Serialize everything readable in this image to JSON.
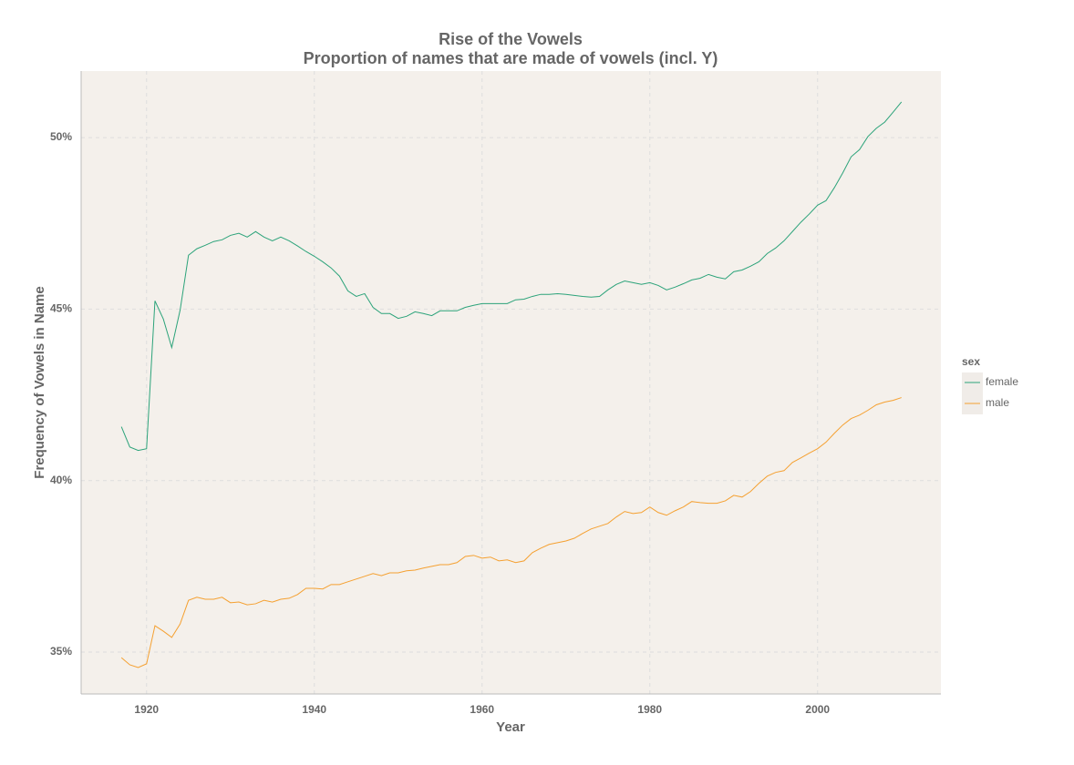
{
  "chart_data": {
    "type": "line",
    "title": "Rise of the Vowels",
    "subtitle": "Proportion of names that are made of vowels (incl. Y)",
    "x_label": "Year",
    "y_label": "Frequency of Vowels in Name",
    "legend_title": "sex",
    "legend_position": "right",
    "grid": true,
    "x": [
      1917,
      1918,
      1919,
      1920,
      1921,
      1922,
      1923,
      1924,
      1925,
      1926,
      1927,
      1928,
      1929,
      1930,
      1931,
      1932,
      1933,
      1934,
      1935,
      1936,
      1937,
      1938,
      1939,
      1940,
      1941,
      1942,
      1943,
      1944,
      1945,
      1946,
      1947,
      1948,
      1949,
      1950,
      1951,
      1952,
      1953,
      1954,
      1955,
      1956,
      1957,
      1958,
      1959,
      1960,
      1961,
      1962,
      1963,
      1964,
      1965,
      1966,
      1967,
      1968,
      1969,
      1970,
      1971,
      1972,
      1973,
      1974,
      1975,
      1976,
      1977,
      1978,
      1979,
      1980,
      1981,
      1982,
      1983,
      1984,
      1985,
      1986,
      1987,
      1988,
      1989,
      1990,
      1991,
      1992,
      1993,
      1994,
      1995,
      1996,
      1997,
      1998,
      1999,
      2000,
      2001,
      2002,
      2003,
      2004,
      2005,
      2006,
      2007,
      2008,
      2009,
      2010
    ],
    "series": [
      {
        "name": "female",
        "color": "#2ca37a",
        "values": [
          41.57,
          40.98,
          40.88,
          40.93,
          45.24,
          44.71,
          43.88,
          44.97,
          46.57,
          46.76,
          46.86,
          46.97,
          47.02,
          47.15,
          47.21,
          47.1,
          47.26,
          47.1,
          46.99,
          47.1,
          46.99,
          46.84,
          46.68,
          46.54,
          46.38,
          46.2,
          45.96,
          45.53,
          45.37,
          45.45,
          45.05,
          44.87,
          44.87,
          44.73,
          44.79,
          44.92,
          44.87,
          44.81,
          44.95,
          44.95,
          44.95,
          45.05,
          45.11,
          45.16,
          45.16,
          45.16,
          45.16,
          45.27,
          45.29,
          45.37,
          45.43,
          45.43,
          45.45,
          45.43,
          45.4,
          45.37,
          45.35,
          45.37,
          45.56,
          45.72,
          45.82,
          45.77,
          45.72,
          45.77,
          45.69,
          45.56,
          45.64,
          45.74,
          45.85,
          45.9,
          46.01,
          45.93,
          45.88,
          46.09,
          46.14,
          46.25,
          46.38,
          46.62,
          46.78,
          46.99,
          47.26,
          47.53,
          47.77,
          48.03,
          48.16,
          48.54,
          48.97,
          49.44,
          49.65,
          50.03,
          50.27,
          50.45,
          50.74,
          51.04
        ]
      },
      {
        "name": "male",
        "color": "#f5a030",
        "values": [
          34.84,
          34.63,
          34.55,
          34.66,
          35.77,
          35.61,
          35.43,
          35.82,
          36.51,
          36.6,
          36.54,
          36.54,
          36.6,
          36.44,
          36.46,
          36.38,
          36.41,
          36.51,
          36.46,
          36.54,
          36.57,
          36.68,
          36.86,
          36.86,
          36.84,
          36.97,
          36.97,
          37.05,
          37.13,
          37.21,
          37.29,
          37.23,
          37.31,
          37.31,
          37.37,
          37.39,
          37.45,
          37.5,
          37.55,
          37.55,
          37.61,
          37.79,
          37.82,
          37.74,
          37.77,
          37.66,
          37.69,
          37.61,
          37.66,
          37.9,
          38.03,
          38.14,
          38.19,
          38.24,
          38.32,
          38.46,
          38.59,
          38.67,
          38.75,
          38.94,
          39.1,
          39.04,
          39.07,
          39.23,
          39.07,
          38.99,
          39.12,
          39.23,
          39.39,
          39.36,
          39.34,
          39.34,
          39.41,
          39.57,
          39.52,
          39.68,
          39.92,
          40.13,
          40.24,
          40.29,
          40.53,
          40.66,
          40.8,
          40.93,
          41.12,
          41.38,
          41.62,
          41.81,
          41.91,
          42.05,
          42.21,
          42.29,
          42.34,
          42.42
        ]
      }
    ],
    "xlim": [
      1912.2,
      2014.7
    ],
    "xticks": [
      1920,
      1940,
      1960,
      1980,
      2000
    ],
    "ylim": [
      33.78,
      51.94
    ],
    "yticks": [
      {
        "value": 35,
        "label": "35%"
      },
      {
        "value": 40,
        "label": "40%"
      },
      {
        "value": 45,
        "label": "45%"
      },
      {
        "value": 50,
        "label": "50%"
      }
    ]
  }
}
